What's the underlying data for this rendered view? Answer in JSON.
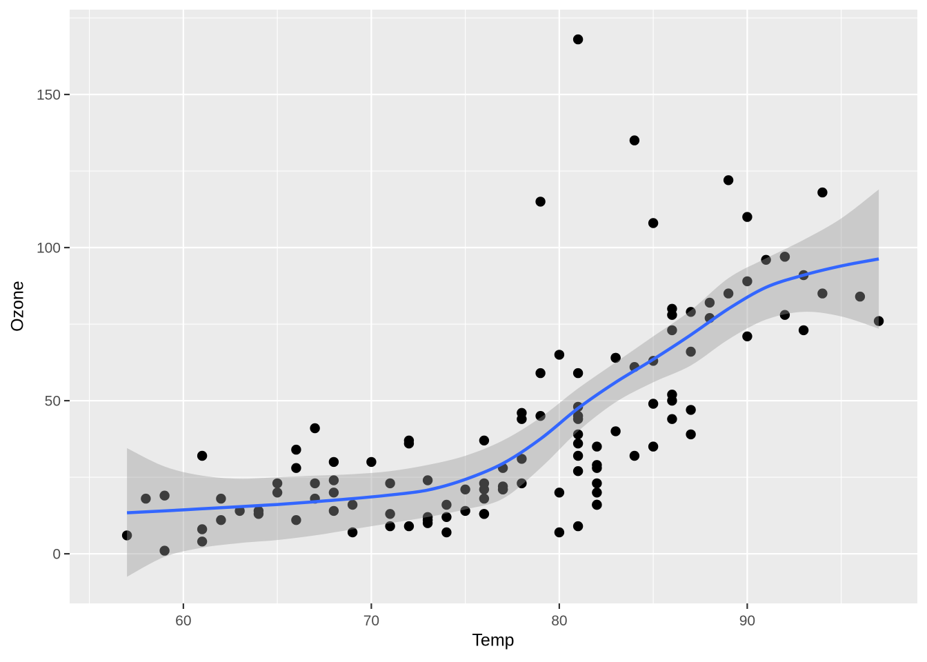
{
  "figure": {
    "background": "#FFFFFF",
    "panel_bg": "#EBEBEB",
    "grid_color": "#FFFFFF",
    "tick_mark_color": "#333333",
    "tick_label_color": "#4D4D4D",
    "axis_title_color": "#000000",
    "point_color": "#000000",
    "smooth_line_color": "#3366FF",
    "ribbon_color": "#999999",
    "ribbon_opacity": 0.4
  },
  "chart_data": {
    "type": "scatter",
    "title": "",
    "xlabel": "Temp",
    "ylabel": "Ozone",
    "grid": true,
    "legend": false,
    "xlim": [
      53.95,
      99.05
    ],
    "ylim": [
      -16.2,
      177.7
    ],
    "x_major_ticks": [
      60,
      70,
      80,
      90
    ],
    "x_minor_ticks": [
      55,
      65,
      75,
      85,
      95
    ],
    "y_major_ticks": [
      0,
      50,
      100,
      150
    ],
    "y_minor_ticks": [
      25,
      75,
      125,
      175
    ],
    "points": [
      [
        67,
        41
      ],
      [
        72,
        36
      ],
      [
        74,
        12
      ],
      [
        62,
        18
      ],
      [
        66,
        28
      ],
      [
        65,
        23
      ],
      [
        59,
        19
      ],
      [
        61,
        8
      ],
      [
        74,
        7
      ],
      [
        69,
        16
      ],
      [
        66,
        11
      ],
      [
        68,
        14
      ],
      [
        58,
        18
      ],
      [
        64,
        14
      ],
      [
        66,
        34
      ],
      [
        57,
        6
      ],
      [
        68,
        30
      ],
      [
        62,
        11
      ],
      [
        59,
        1
      ],
      [
        73,
        11
      ],
      [
        61,
        4
      ],
      [
        61,
        32
      ],
      [
        67,
        23
      ],
      [
        81,
        45
      ],
      [
        79,
        115
      ],
      [
        76,
        37
      ],
      [
        82,
        29
      ],
      [
        90,
        71
      ],
      [
        87,
        39
      ],
      [
        82,
        23
      ],
      [
        77,
        21
      ],
      [
        72,
        37
      ],
      [
        65,
        20
      ],
      [
        73,
        12
      ],
      [
        76,
        13
      ],
      [
        84,
        135
      ],
      [
        85,
        49
      ],
      [
        81,
        32
      ],
      [
        83,
        64
      ],
      [
        83,
        40
      ],
      [
        88,
        77
      ],
      [
        92,
        97
      ],
      [
        92,
        97
      ],
      [
        89,
        85
      ],
      [
        73,
        10
      ],
      [
        81,
        27
      ],
      [
        80,
        7
      ],
      [
        81,
        48
      ],
      [
        82,
        35
      ],
      [
        84,
        61
      ],
      [
        87,
        79
      ],
      [
        85,
        63
      ],
      [
        74,
        16
      ],
      [
        86,
        80
      ],
      [
        85,
        108
      ],
      [
        82,
        20
      ],
      [
        86,
        52
      ],
      [
        88,
        82
      ],
      [
        86,
        50
      ],
      [
        83,
        64
      ],
      [
        81,
        59
      ],
      [
        81,
        39
      ],
      [
        81,
        9
      ],
      [
        82,
        16
      ],
      [
        86,
        78
      ],
      [
        85,
        35
      ],
      [
        87,
        66
      ],
      [
        89,
        122
      ],
      [
        90,
        89
      ],
      [
        90,
        110
      ],
      [
        86,
        44
      ],
      [
        82,
        28
      ],
      [
        80,
        65
      ],
      [
        77,
        22
      ],
      [
        79,
        59
      ],
      [
        76,
        23
      ],
      [
        78,
        31
      ],
      [
        78,
        44
      ],
      [
        77,
        21
      ],
      [
        72,
        9
      ],
      [
        79,
        45
      ],
      [
        81,
        168
      ],
      [
        86,
        73
      ],
      [
        97,
        76
      ],
      [
        94,
        118
      ],
      [
        96,
        84
      ],
      [
        94,
        85
      ],
      [
        91,
        96
      ],
      [
        92,
        78
      ],
      [
        93,
        73
      ],
      [
        93,
        91
      ],
      [
        87,
        47
      ],
      [
        84,
        32
      ],
      [
        80,
        20
      ],
      [
        78,
        23
      ],
      [
        75,
        21
      ],
      [
        73,
        24
      ],
      [
        81,
        44
      ],
      [
        76,
        21
      ],
      [
        77,
        28
      ],
      [
        71,
        9
      ],
      [
        71,
        13
      ],
      [
        78,
        46
      ],
      [
        67,
        18
      ],
      [
        76,
        13
      ],
      [
        68,
        24
      ],
      [
        82,
        16
      ],
      [
        64,
        13
      ],
      [
        71,
        23
      ],
      [
        81,
        36
      ],
      [
        69,
        7
      ],
      [
        63,
        14
      ],
      [
        70,
        30
      ],
      [
        75,
        14
      ],
      [
        76,
        18
      ],
      [
        68,
        20
      ]
    ],
    "smooth": {
      "method": "loess",
      "x": [
        57,
        59,
        61,
        63,
        65,
        67,
        69,
        71,
        73,
        75,
        77,
        79,
        81,
        83,
        85,
        87,
        89,
        91,
        93,
        95,
        97
      ],
      "y": [
        13.4,
        14.0,
        14.7,
        15.4,
        16.1,
        17.0,
        18.0,
        19.2,
        20.8,
        24.3,
        29.5,
        37.5,
        47.5,
        56.0,
        63.5,
        71.5,
        80.0,
        87.0,
        91.0,
        94.0,
        96.3
      ],
      "upper": [
        34.5,
        28.5,
        25.5,
        24.5,
        25.0,
        25.5,
        26.0,
        27.0,
        29.0,
        32.0,
        37.0,
        44.5,
        54.0,
        62.5,
        71.0,
        79.5,
        90.0,
        96.5,
        102.5,
        109.5,
        119.0
      ],
      "lower": [
        -7.5,
        -1.0,
        2.0,
        3.5,
        4.5,
        6.0,
        8.0,
        10.0,
        12.0,
        14.5,
        18.0,
        28.0,
        40.0,
        49.5,
        56.0,
        61.5,
        70.0,
        76.5,
        79.0,
        77.5,
        73.5
      ]
    }
  }
}
